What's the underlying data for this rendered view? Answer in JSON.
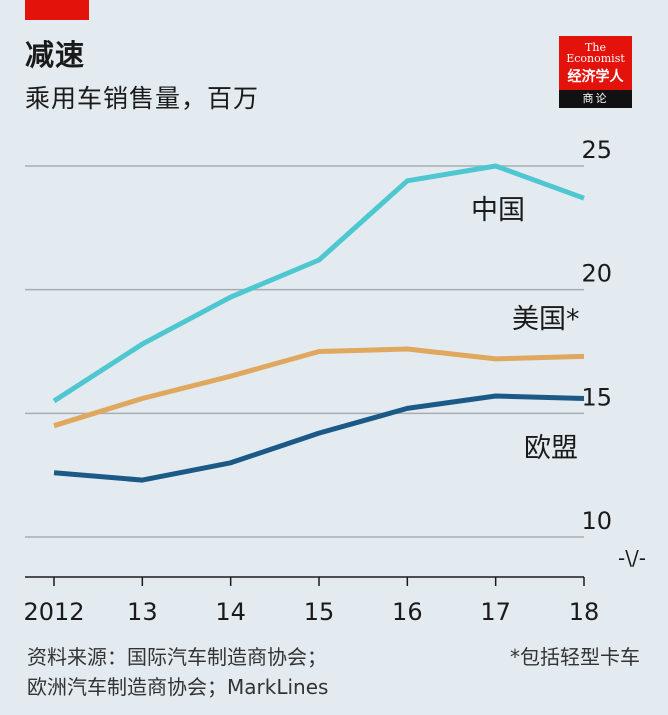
{
  "header": {
    "title": "减速",
    "subtitle": "乘用车销售量，百万"
  },
  "logo": {
    "line1": "The",
    "line2": "Economist",
    "cn": "经济学人",
    "bar": "商论"
  },
  "chart_data": {
    "type": "line",
    "title": "减速",
    "subtitle": "乘用车销售量，百万",
    "categories": [
      "2012",
      "13",
      "14",
      "15",
      "16",
      "17",
      "18"
    ],
    "x": [
      2012,
      2013,
      2014,
      2015,
      2016,
      2017,
      2018
    ],
    "yticks": [
      "10",
      "15",
      "20",
      "25"
    ],
    "ylim": [
      10,
      25
    ],
    "axis_break_symbol": "-\\/-",
    "series": [
      {
        "name": "中国",
        "color": "#4ec7d1",
        "values": [
          15.5,
          17.8,
          19.7,
          21.2,
          24.4,
          25.0,
          23.7
        ]
      },
      {
        "name": "美国*",
        "color": "#e0a75e",
        "values": [
          14.5,
          15.6,
          16.5,
          17.5,
          17.6,
          17.2,
          17.3
        ]
      },
      {
        "name": "欧盟",
        "color": "#1b5a86",
        "values": [
          12.6,
          12.3,
          13.0,
          14.2,
          15.2,
          15.7,
          15.6
        ]
      }
    ],
    "grid": true
  },
  "footer": {
    "source_line1": "资料来源：国际汽车制造商协会；",
    "source_line2": "欧洲汽车制造商协会；MarkLines",
    "footnote": "*包括轻型卡车"
  }
}
